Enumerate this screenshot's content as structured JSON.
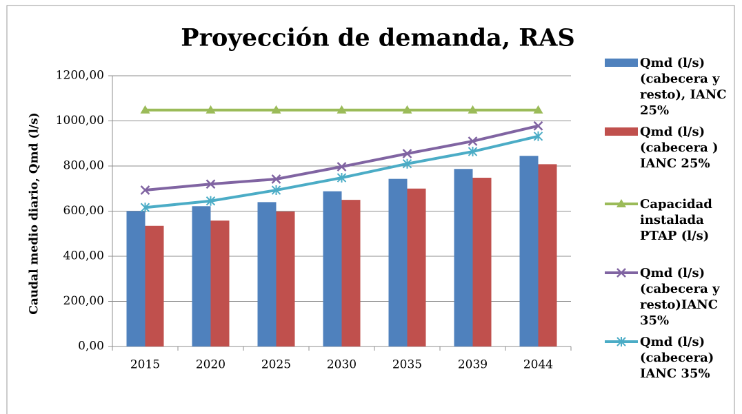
{
  "chart_data": {
    "type": "bar_line",
    "title": "Proyección de demanda, RAS",
    "y_label": "Caudal medio diario, Qmd (l/s)",
    "categories": [
      "2015",
      "2020",
      "2025",
      "2030",
      "2035",
      "2039",
      "2044"
    ],
    "series": [
      {
        "name": "Qmd (l/s) (cabecera y resto), IANC 25%",
        "type": "bar",
        "color": "#4f81bd",
        "values": [
          600,
          622,
          640,
          688,
          743,
          787,
          845
        ]
      },
      {
        "name": "Qmd (l/s) (cabecera ) IANC 25%",
        "type": "bar",
        "color": "#c0504d",
        "values": [
          535,
          558,
          598,
          650,
          700,
          748,
          808
        ]
      },
      {
        "name": "Capacidad instalada PTAP (l/s)",
        "type": "line",
        "marker": "triangle",
        "color": "#9bbb59",
        "values": [
          1048,
          1048,
          1048,
          1048,
          1048,
          1048,
          1048
        ]
      },
      {
        "name": "Qmd (l/s) (cabecera y resto)IANC 35%",
        "type": "line",
        "marker": "x",
        "color": "#8064a2",
        "values": [
          693,
          720,
          742,
          797,
          855,
          910,
          978
        ]
      },
      {
        "name": "Qmd (l/s) (cabecera) IANC 35%",
        "type": "line",
        "marker": "star",
        "color": "#4bacc6",
        "values": [
          616,
          645,
          693,
          748,
          810,
          864,
          932
        ]
      }
    ],
    "ylim": [
      0,
      1200
    ],
    "yticks": [
      {
        "value": 0,
        "label": "0,00"
      },
      {
        "value": 200,
        "label": "200,00"
      },
      {
        "value": 400,
        "label": "400,00"
      },
      {
        "value": 600,
        "label": "600,00"
      },
      {
        "value": 800,
        "label": "800,00"
      },
      {
        "value": 1000,
        "label": "1000,00"
      },
      {
        "value": 1200,
        "label": "1200,00"
      }
    ],
    "grid": true,
    "legend": "right"
  }
}
